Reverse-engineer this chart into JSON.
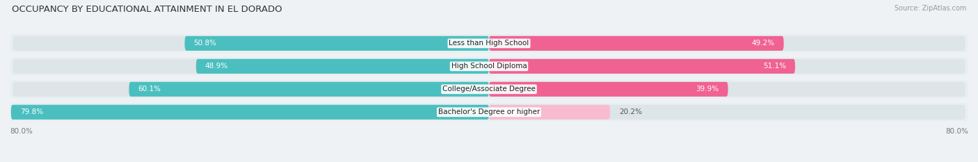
{
  "title": "OCCUPANCY BY EDUCATIONAL ATTAINMENT IN EL DORADO",
  "source": "Source: ZipAtlas.com",
  "categories": [
    "Less than High School",
    "High School Diploma",
    "College/Associate Degree",
    "Bachelor's Degree or higher"
  ],
  "owner_values": [
    50.8,
    48.9,
    60.1,
    79.8
  ],
  "renter_values": [
    49.2,
    51.1,
    39.9,
    20.2
  ],
  "owner_color": "#4bbfbf",
  "renter_color": "#f06292",
  "renter_color_light": "#f8bbd0",
  "background_color": "#eef2f4",
  "bar_background": "#dde5e8",
  "row_background": "#e8eef1",
  "title_fontsize": 9.5,
  "source_fontsize": 7,
  "label_fontsize": 7.5,
  "value_fontsize": 7.5,
  "tick_fontsize": 7.5,
  "axis_min": -80.0,
  "axis_max": 80.0,
  "left_axis_label": "80.0%",
  "right_axis_label": "80.0%"
}
